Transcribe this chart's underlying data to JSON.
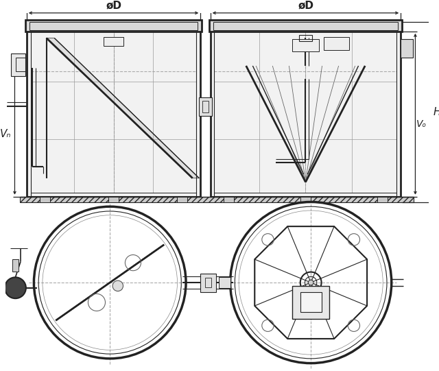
{
  "bg_color": "#ffffff",
  "line_color": "#222222",
  "dashed_color": "#aaaaaa",
  "label_VN": "Vₙ",
  "label_VO": "Vₒ",
  "label_H": "H",
  "label_oD": "øD",
  "figsize": [
    6.4,
    5.41
  ],
  "dpi": 100
}
